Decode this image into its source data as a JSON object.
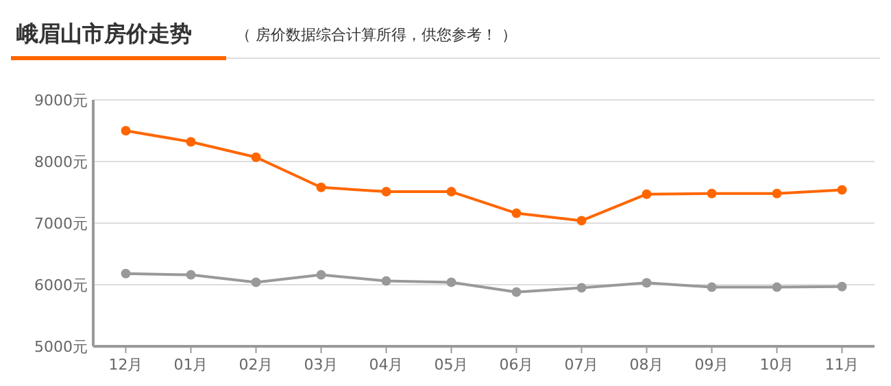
{
  "chart_data": {
    "type": "line",
    "title": "峨眉山市房价走势",
    "subtitle": "（ 房价数据综合计算所得，供您参考！ ）",
    "categories": [
      "12月",
      "01月",
      "02月",
      "03月",
      "04月",
      "05月",
      "06月",
      "07月",
      "08月",
      "09月",
      "10月",
      "11月"
    ],
    "series": [
      {
        "color": "#ff6600",
        "values": [
          8500,
          8320,
          8070,
          7580,
          7510,
          7510,
          7160,
          7040,
          7470,
          7480,
          7480,
          7540
        ]
      },
      {
        "color": "#999999",
        "values": [
          6180,
          6160,
          6040,
          6160,
          6060,
          6040,
          5880,
          5950,
          6030,
          5960,
          5960,
          5970
        ]
      }
    ],
    "ylim": [
      5000,
      9000
    ],
    "yticks": [
      {
        "value": 5000,
        "label": "5000元"
      },
      {
        "value": 6000,
        "label": "6000元"
      },
      {
        "value": 7000,
        "label": "7000元"
      },
      {
        "value": 8000,
        "label": "8000元"
      },
      {
        "value": 9000,
        "label": "9000元"
      }
    ],
    "grid": "y",
    "marker": "circle",
    "line_style": "solid"
  }
}
